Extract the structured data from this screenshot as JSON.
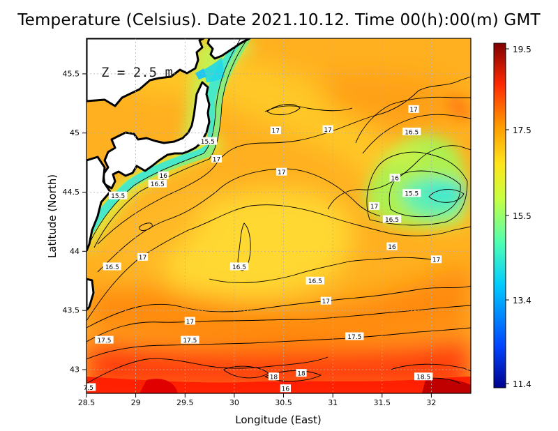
{
  "title": "Temperature (Celsius). Date 2021.10.12. Time 00(h):00(m) GMT",
  "depth_label": "Z = 2.5 m",
  "axes": {
    "xlabel": "Longitude (East)",
    "ylabel": "Latitude (North)",
    "xlim": [
      28.5,
      32.4
    ],
    "ylim": [
      42.8,
      45.8
    ],
    "xticks": [
      "28.5",
      "29",
      "29.5",
      "30",
      "30.5",
      "31",
      "31.5",
      "32"
    ],
    "yticks": [
      "43",
      "43.5",
      "44",
      "44.5",
      "45",
      "45.5"
    ],
    "grid": true
  },
  "colorbar": {
    "min": 11.4,
    "max": 19.5,
    "ticks": [
      "19.5",
      "17.5",
      "15.5",
      "13.4",
      "11.4"
    ],
    "colors": [
      "#00008f",
      "#0044ff",
      "#00ccff",
      "#4dffb3",
      "#c8ff40",
      "#ffe51a",
      "#ff9a00",
      "#ff2a00",
      "#800000"
    ]
  },
  "contour_labels": [
    {
      "text": "17",
      "lon": 31.82,
      "lat": 45.2
    },
    {
      "text": "17",
      "lon": 30.42,
      "lat": 45.02
    },
    {
      "text": "17",
      "lon": 30.95,
      "lat": 45.03
    },
    {
      "text": "16.5",
      "lon": 31.8,
      "lat": 45.01
    },
    {
      "text": "15.5",
      "lon": 29.73,
      "lat": 44.93
    },
    {
      "text": "17",
      "lon": 29.82,
      "lat": 44.78
    },
    {
      "text": "17",
      "lon": 30.48,
      "lat": 44.67
    },
    {
      "text": "16",
      "lon": 29.28,
      "lat": 44.64
    },
    {
      "text": "16.5",
      "lon": 29.22,
      "lat": 44.57
    },
    {
      "text": "16",
      "lon": 31.63,
      "lat": 44.62
    },
    {
      "text": "15.5",
      "lon": 31.8,
      "lat": 44.49
    },
    {
      "text": "15.5",
      "lon": 28.82,
      "lat": 44.47
    },
    {
      "text": "17",
      "lon": 31.42,
      "lat": 44.38
    },
    {
      "text": "16.5",
      "lon": 31.6,
      "lat": 44.27
    },
    {
      "text": "16",
      "lon": 31.6,
      "lat": 44.04
    },
    {
      "text": "17",
      "lon": 29.07,
      "lat": 43.95
    },
    {
      "text": "17",
      "lon": 32.05,
      "lat": 43.93
    },
    {
      "text": "16.5",
      "lon": 28.76,
      "lat": 43.87
    },
    {
      "text": "16.5",
      "lon": 30.05,
      "lat": 43.87
    },
    {
      "text": "16.5",
      "lon": 30.82,
      "lat": 43.75
    },
    {
      "text": "17",
      "lon": 30.93,
      "lat": 43.58
    },
    {
      "text": "17",
      "lon": 29.55,
      "lat": 43.41
    },
    {
      "text": "17.5",
      "lon": 28.68,
      "lat": 43.25
    },
    {
      "text": "17.5",
      "lon": 29.55,
      "lat": 43.25
    },
    {
      "text": "17.5",
      "lon": 31.22,
      "lat": 43.28
    },
    {
      "text": "18",
      "lon": 30.68,
      "lat": 42.97
    },
    {
      "text": "18",
      "lon": 30.4,
      "lat": 42.94
    },
    {
      "text": "18.5",
      "lon": 31.92,
      "lat": 42.94
    },
    {
      "text": "16",
      "lon": 30.52,
      "lat": 42.84
    },
    {
      "text": "7.5",
      "lon": 28.52,
      "lat": 42.85
    }
  ]
}
